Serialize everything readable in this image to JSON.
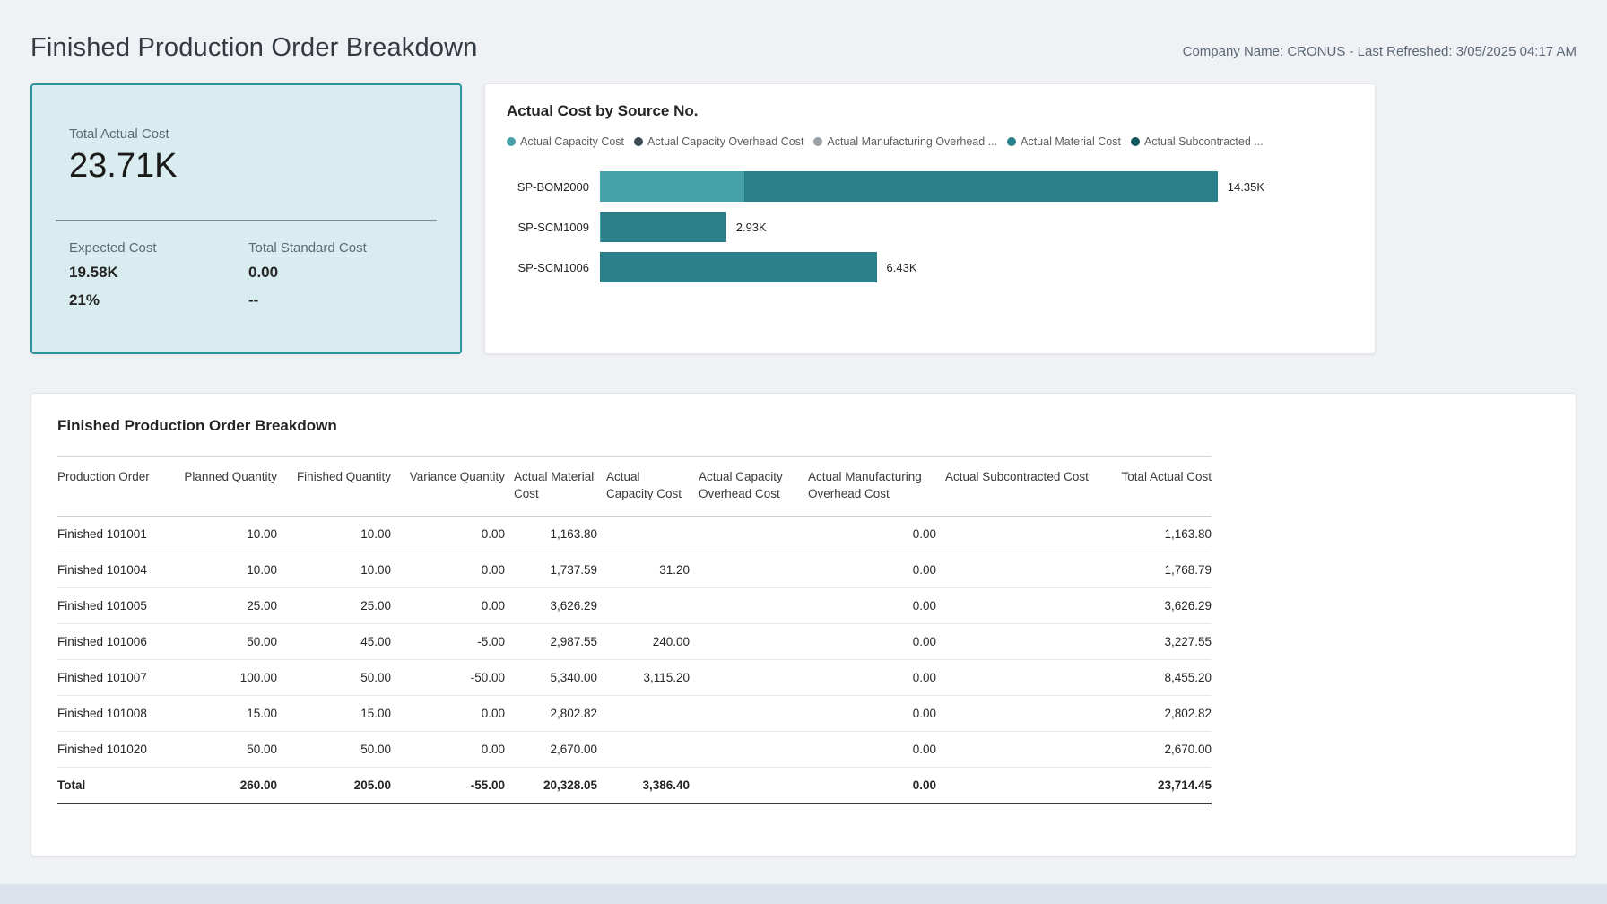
{
  "header": {
    "title": "Finished Production Order Breakdown",
    "meta": "Company Name: CRONUS - Last Refreshed: 3/05/2025 04:17 AM"
  },
  "kpi": {
    "label": "Total Actual Cost",
    "value": "23.71K",
    "expected_cost_label": "Expected Cost",
    "expected_cost_value": "19.58K",
    "expected_cost_pct": "21%",
    "standard_cost_label": "Total Standard Cost",
    "standard_cost_value": "0.00",
    "standard_cost_pct": "--"
  },
  "chart_data": {
    "type": "bar",
    "orientation": "horizontal",
    "stacked": true,
    "title": "Actual Cost by Source No.",
    "categories": [
      "SP-BOM2000",
      "SP-SCM1009",
      "SP-SCM1006"
    ],
    "series": [
      {
        "name": "Actual Capacity Cost",
        "color": "#47a1a9",
        "values": [
          3355.2,
          31.2,
          0
        ]
      },
      {
        "name": "Actual Capacity Overhead Cost",
        "color": "#3d4a54",
        "values": [
          0,
          0,
          0
        ]
      },
      {
        "name": "Actual Manufacturing Overhead ...",
        "color": "#9aa0a6",
        "values": [
          0,
          0,
          0
        ]
      },
      {
        "name": "Actual Material Cost",
        "color": "#2a7f88",
        "values": [
          10997.55,
          2901.39,
          6429.11
        ]
      },
      {
        "name": "Actual Subcontracted ...",
        "color": "#12565e",
        "values": [
          0,
          0,
          0
        ]
      }
    ],
    "bar_total_labels": [
      "14.35K",
      "2.93K",
      "6.43K"
    ],
    "xlim": [
      0,
      14352.75
    ],
    "legend_position": "top",
    "grid": false,
    "max_bar_fraction": 0.82
  },
  "table": {
    "title": "Finished Production Order Breakdown",
    "columns": [
      {
        "label": "Production Order",
        "header_align": "al",
        "cell_align": "al"
      },
      {
        "label": "Planned Quantity",
        "header_align": "ar",
        "cell_align": "ar"
      },
      {
        "label": "Finished Quantity",
        "header_align": "ar",
        "cell_align": "ar"
      },
      {
        "label": "Variance Quantity",
        "header_align": "ar",
        "cell_align": "ar"
      },
      {
        "label": "Actual Material Cost",
        "header_align": "al",
        "cell_align": "ar"
      },
      {
        "label": "Actual Capacity Cost",
        "header_align": "al",
        "cell_align": "ar"
      },
      {
        "label": "Actual Capacity Overhead Cost",
        "header_align": "al",
        "cell_align": "ar"
      },
      {
        "label": "Actual Manufacturing Overhead Cost",
        "header_align": "al",
        "cell_align": "ar"
      },
      {
        "label": "Actual Subcontracted Cost",
        "header_align": "al",
        "cell_align": "ar"
      },
      {
        "label": "Total Actual Cost",
        "header_align": "ar",
        "cell_align": "ar"
      }
    ],
    "rows": [
      [
        "Finished 101001",
        "10.00",
        "10.00",
        "0.00",
        "1,163.80",
        "",
        "",
        "0.00",
        "",
        "1,163.80"
      ],
      [
        "Finished 101004",
        "10.00",
        "10.00",
        "0.00",
        "1,737.59",
        "31.20",
        "",
        "0.00",
        "",
        "1,768.79"
      ],
      [
        "Finished 101005",
        "25.00",
        "25.00",
        "0.00",
        "3,626.29",
        "",
        "",
        "0.00",
        "",
        "3,626.29"
      ],
      [
        "Finished 101006",
        "50.00",
        "45.00",
        "-5.00",
        "2,987.55",
        "240.00",
        "",
        "0.00",
        "",
        "3,227.55"
      ],
      [
        "Finished 101007",
        "100.00",
        "50.00",
        "-50.00",
        "5,340.00",
        "3,115.20",
        "",
        "0.00",
        "",
        "8,455.20"
      ],
      [
        "Finished 101008",
        "15.00",
        "15.00",
        "0.00",
        "2,802.82",
        "",
        "",
        "0.00",
        "",
        "2,802.82"
      ],
      [
        "Finished 101020",
        "50.00",
        "50.00",
        "0.00",
        "2,670.00",
        "",
        "",
        "0.00",
        "",
        "2,670.00"
      ]
    ],
    "total_row": [
      "Total",
      "260.00",
      "205.00",
      "-55.00",
      "20,328.05",
      "3,386.40",
      "",
      "0.00",
      "",
      "23,714.45"
    ]
  }
}
